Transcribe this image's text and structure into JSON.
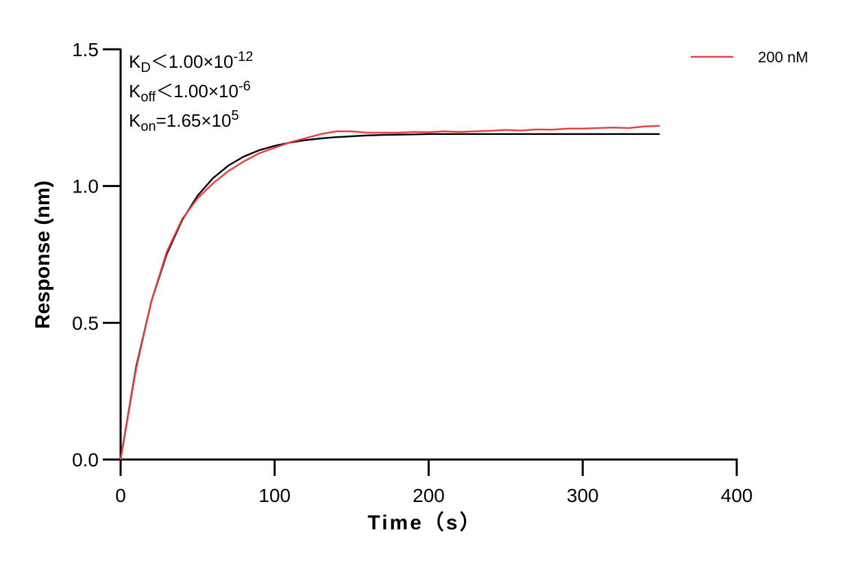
{
  "chart_data": {
    "type": "line",
    "x_label": "Time（s）",
    "y_label": "Response (nm)",
    "xlim": [
      0,
      400
    ],
    "xticks": [
      0,
      100,
      200,
      300,
      400
    ],
    "ylim": [
      0,
      1.5
    ],
    "yticks": [
      {
        "value": 0,
        "label": "0.0"
      },
      {
        "value": 0.5,
        "label": "0.5"
      },
      {
        "value": 1,
        "label": "1.0"
      },
      {
        "value": 1.5,
        "label": "1.5"
      }
    ],
    "legend": "top-right",
    "annotations": [
      [
        {
          "text": "K"
        },
        {
          "text": "D",
          "style": "sub"
        },
        {
          "text": "＜1.00×10"
        },
        {
          "text": "-12",
          "style": "sup"
        }
      ],
      [
        {
          "text": "K"
        },
        {
          "text": "off",
          "style": "sub"
        },
        {
          "text": "＜1.00×10"
        },
        {
          "text": "-6",
          "style": "sup"
        }
      ],
      [
        {
          "text": "K"
        },
        {
          "text": "on",
          "style": "sub"
        },
        {
          "text": "=1.65×10"
        },
        {
          "text": "5",
          "style": "sup"
        }
      ]
    ],
    "x": [
      0,
      10,
      20,
      30,
      40,
      50,
      60,
      70,
      80,
      90,
      100,
      110,
      120,
      130,
      140,
      150,
      160,
      170,
      180,
      190,
      200,
      210,
      220,
      230,
      240,
      250,
      260,
      270,
      280,
      290,
      300,
      310,
      320,
      330,
      340,
      350
    ],
    "series": [
      {
        "color": "#000000",
        "values": [
          0,
          0.337,
          0.579,
          0.752,
          0.876,
          0.965,
          1.029,
          1.075,
          1.108,
          1.131,
          1.147,
          1.159,
          1.168,
          1.174,
          1.179,
          1.182,
          1.185,
          1.187,
          1.188,
          1.189,
          1.19,
          1.19,
          1.19,
          1.19,
          1.19,
          1.19,
          1.19,
          1.19,
          1.19,
          1.19,
          1.19,
          1.19,
          1.19,
          1.19,
          1.19,
          1.19
        ]
      },
      {
        "name": "200 nM",
        "color": "#e8403f",
        "values": [
          0,
          0.33,
          0.58,
          0.76,
          0.88,
          0.955,
          1.01,
          1.055,
          1.09,
          1.12,
          1.14,
          1.16,
          1.175,
          1.19,
          1.2,
          1.2,
          1.195,
          1.195,
          1.195,
          1.198,
          1.197,
          1.2,
          1.198,
          1.2,
          1.202,
          1.205,
          1.203,
          1.207,
          1.206,
          1.21,
          1.21,
          1.212,
          1.214,
          1.212,
          1.218,
          1.22
        ]
      }
    ]
  }
}
